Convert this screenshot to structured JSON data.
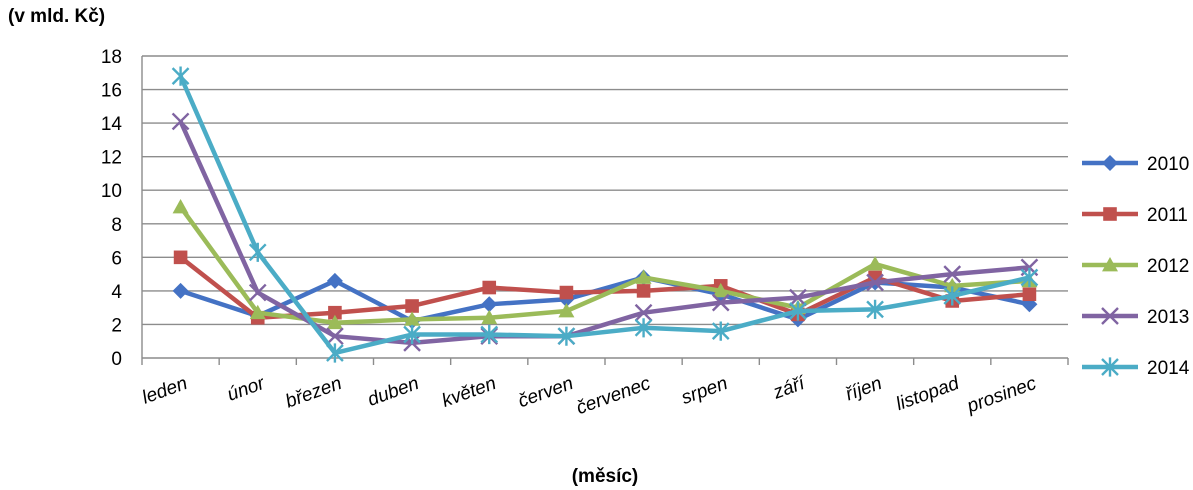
{
  "chart_data": {
    "type": "line",
    "title": "",
    "ylabel": "(v mld. Kč)",
    "xlabel": "(měsíc)",
    "ylim": [
      0,
      18
    ],
    "yticks": [
      0,
      2,
      4,
      6,
      8,
      10,
      12,
      14,
      16,
      18
    ],
    "grid": true,
    "legend_position": "right",
    "categories": [
      "leden",
      "únor",
      "březen",
      "duben",
      "květen",
      "červen",
      "červenec",
      "srpen",
      "září",
      "říjen",
      "listopad",
      "prosinec"
    ],
    "series": [
      {
        "name": "2010",
        "color": "#4472c4",
        "marker": "diamond",
        "values": [
          4.0,
          2.5,
          4.6,
          2.2,
          3.2,
          3.5,
          4.8,
          3.8,
          2.3,
          4.5,
          4.2,
          3.2
        ]
      },
      {
        "name": "2011",
        "color": "#c0504d",
        "marker": "square",
        "values": [
          6.0,
          2.4,
          2.7,
          3.1,
          4.2,
          3.9,
          4.0,
          4.3,
          2.6,
          4.8,
          3.4,
          3.8
        ]
      },
      {
        "name": "2012",
        "color": "#9bbb59",
        "marker": "triangle",
        "values": [
          9.0,
          2.7,
          2.1,
          2.3,
          2.4,
          2.8,
          4.8,
          4.0,
          3.0,
          5.6,
          4.3,
          4.6
        ]
      },
      {
        "name": "2013",
        "color": "#8064a2",
        "marker": "x",
        "values": [
          14.1,
          3.9,
          1.3,
          0.9,
          1.3,
          1.3,
          2.7,
          3.3,
          3.6,
          4.5,
          5.0,
          5.4
        ]
      },
      {
        "name": "2014",
        "color": "#4bacc6",
        "marker": "star",
        "values": [
          16.8,
          6.3,
          0.3,
          1.4,
          1.4,
          1.3,
          1.8,
          1.6,
          2.8,
          2.9,
          3.7,
          4.8
        ]
      }
    ]
  }
}
